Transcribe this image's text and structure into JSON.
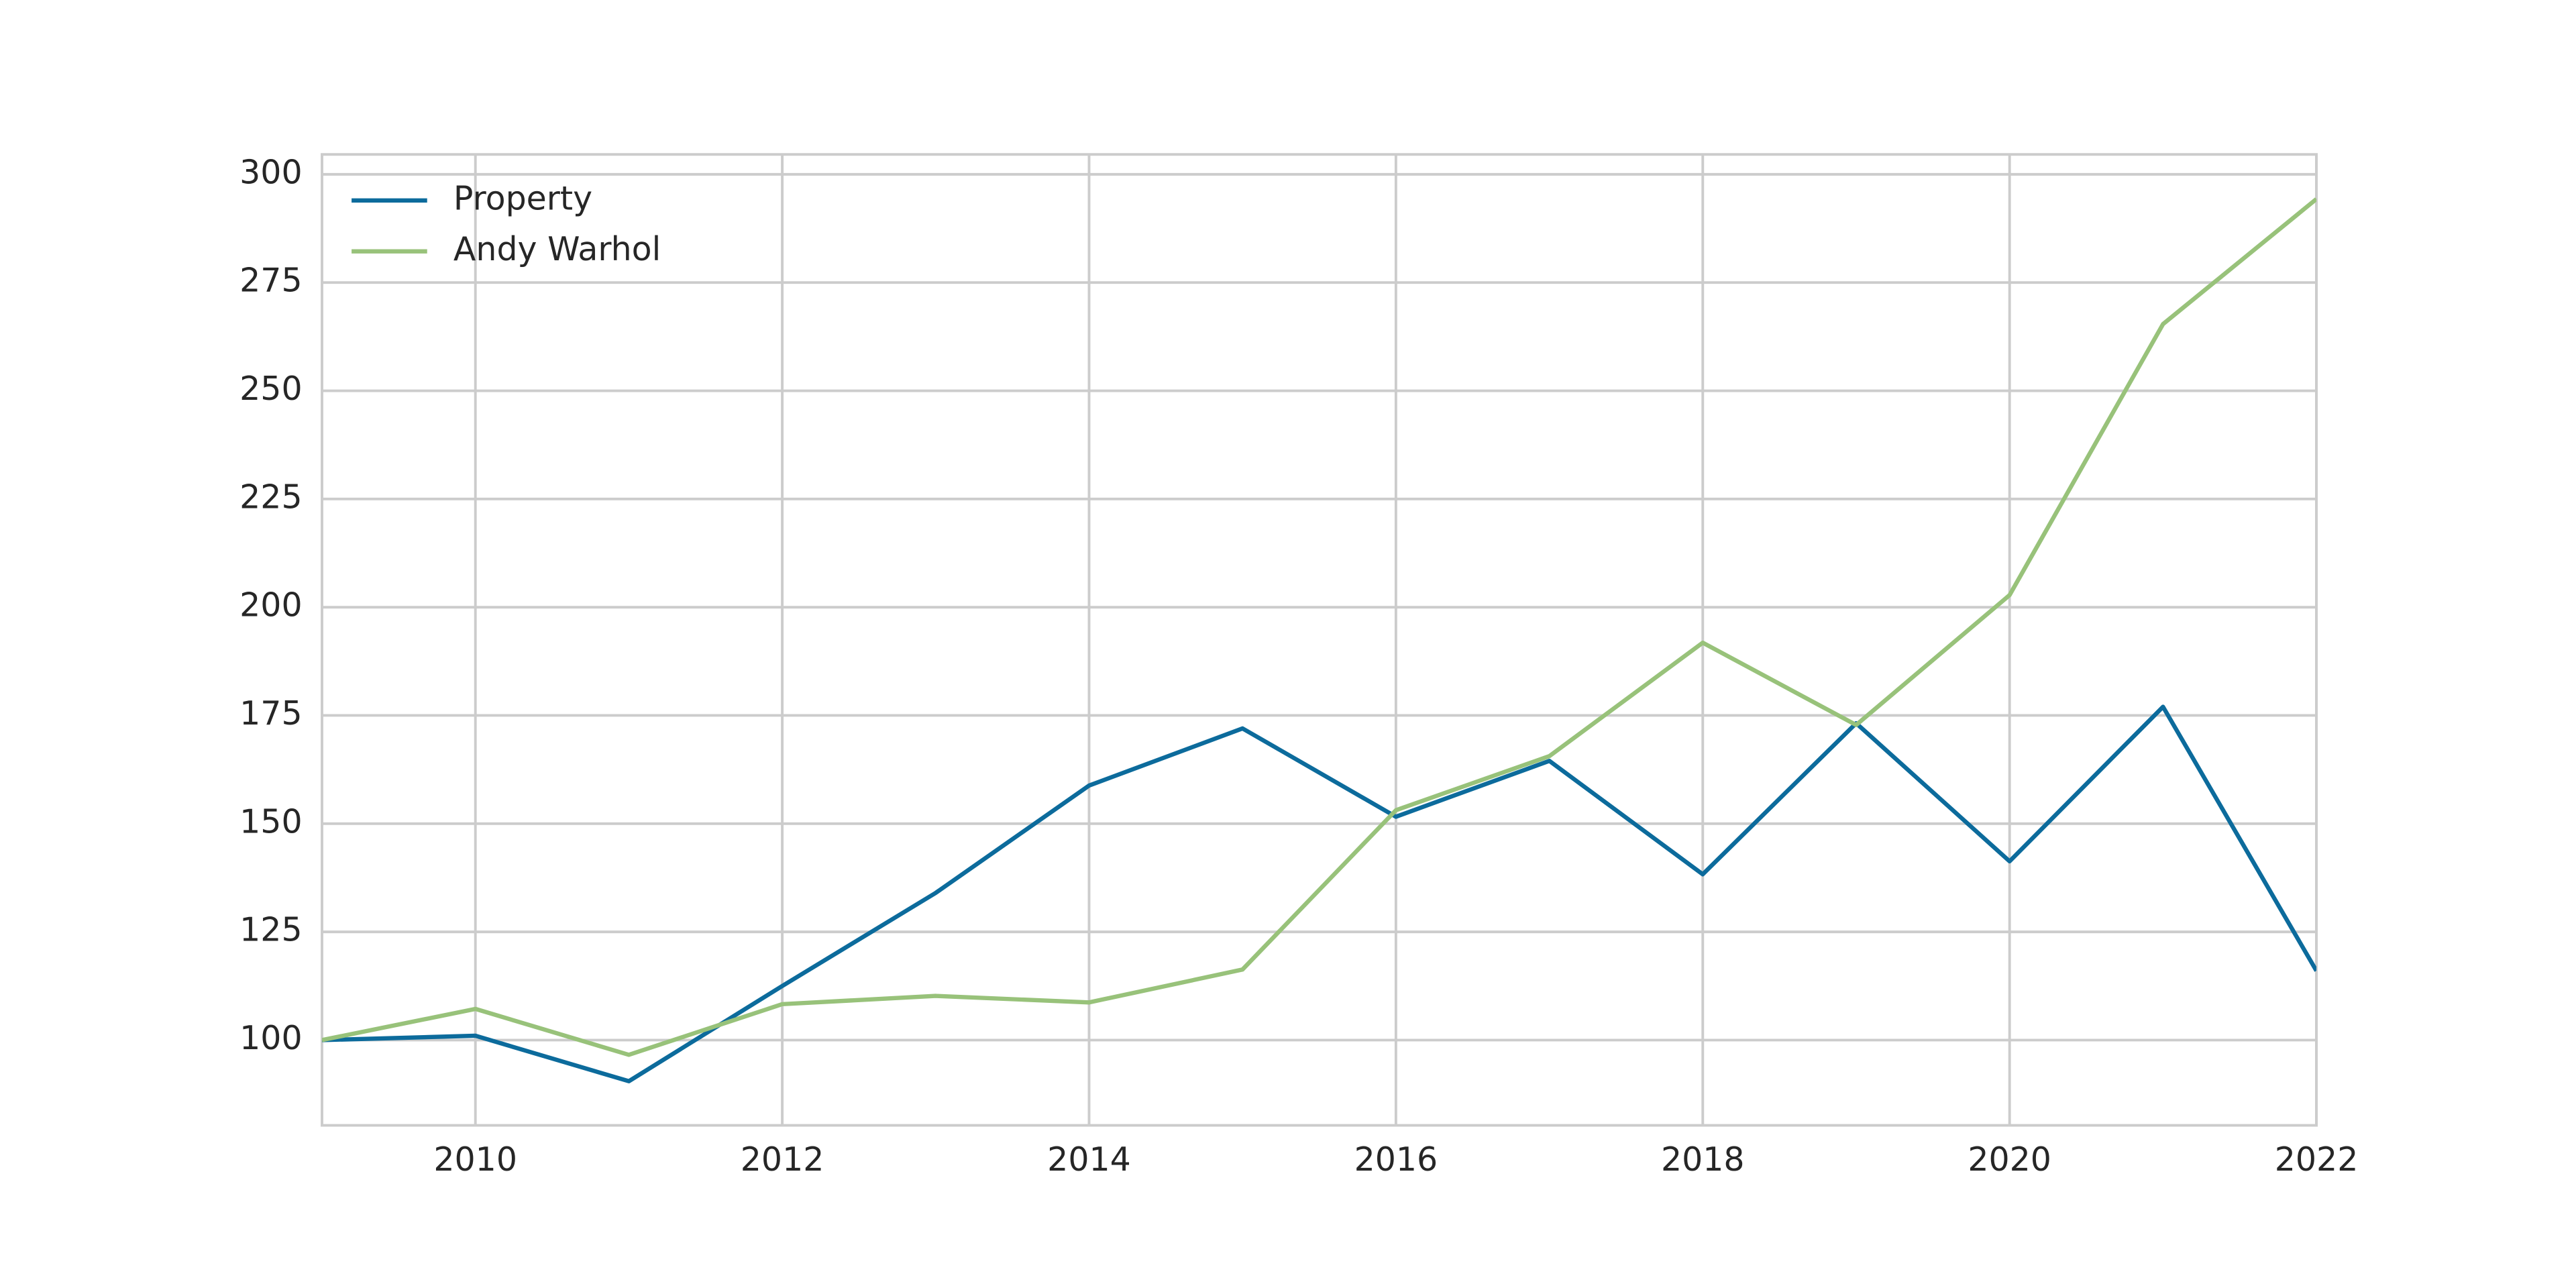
{
  "chart_data": {
    "type": "line",
    "x": [
      2009,
      2010,
      2011,
      2012,
      2013,
      2014,
      2015,
      2016,
      2017,
      2018,
      2019,
      2020,
      2021,
      2022
    ],
    "series": [
      {
        "name": "Property",
        "color": "#0c6b9c",
        "values": [
          100,
          101,
          90.5,
          112.5,
          134,
          158.8,
          172,
          151.6,
          164.5,
          138.3,
          173.2,
          141.3,
          177,
          116
        ]
      },
      {
        "name": "Andy Warhol",
        "color": "#98c27a",
        "values": [
          100,
          107.2,
          96.6,
          108.3,
          110.2,
          108.7,
          116.3,
          153.1,
          165.6,
          191.8,
          172.8,
          202.8,
          265.4,
          294.3
        ]
      }
    ],
    "xlim": [
      2009,
      2022
    ],
    "xticks": [
      2010,
      2012,
      2014,
      2016,
      2018,
      2020,
      2022
    ],
    "ylim": [
      80.3,
      304.6
    ],
    "yticks": [
      100,
      125,
      150,
      175,
      200,
      225,
      250,
      275,
      300
    ],
    "grid": true,
    "legend": "upper-left"
  }
}
